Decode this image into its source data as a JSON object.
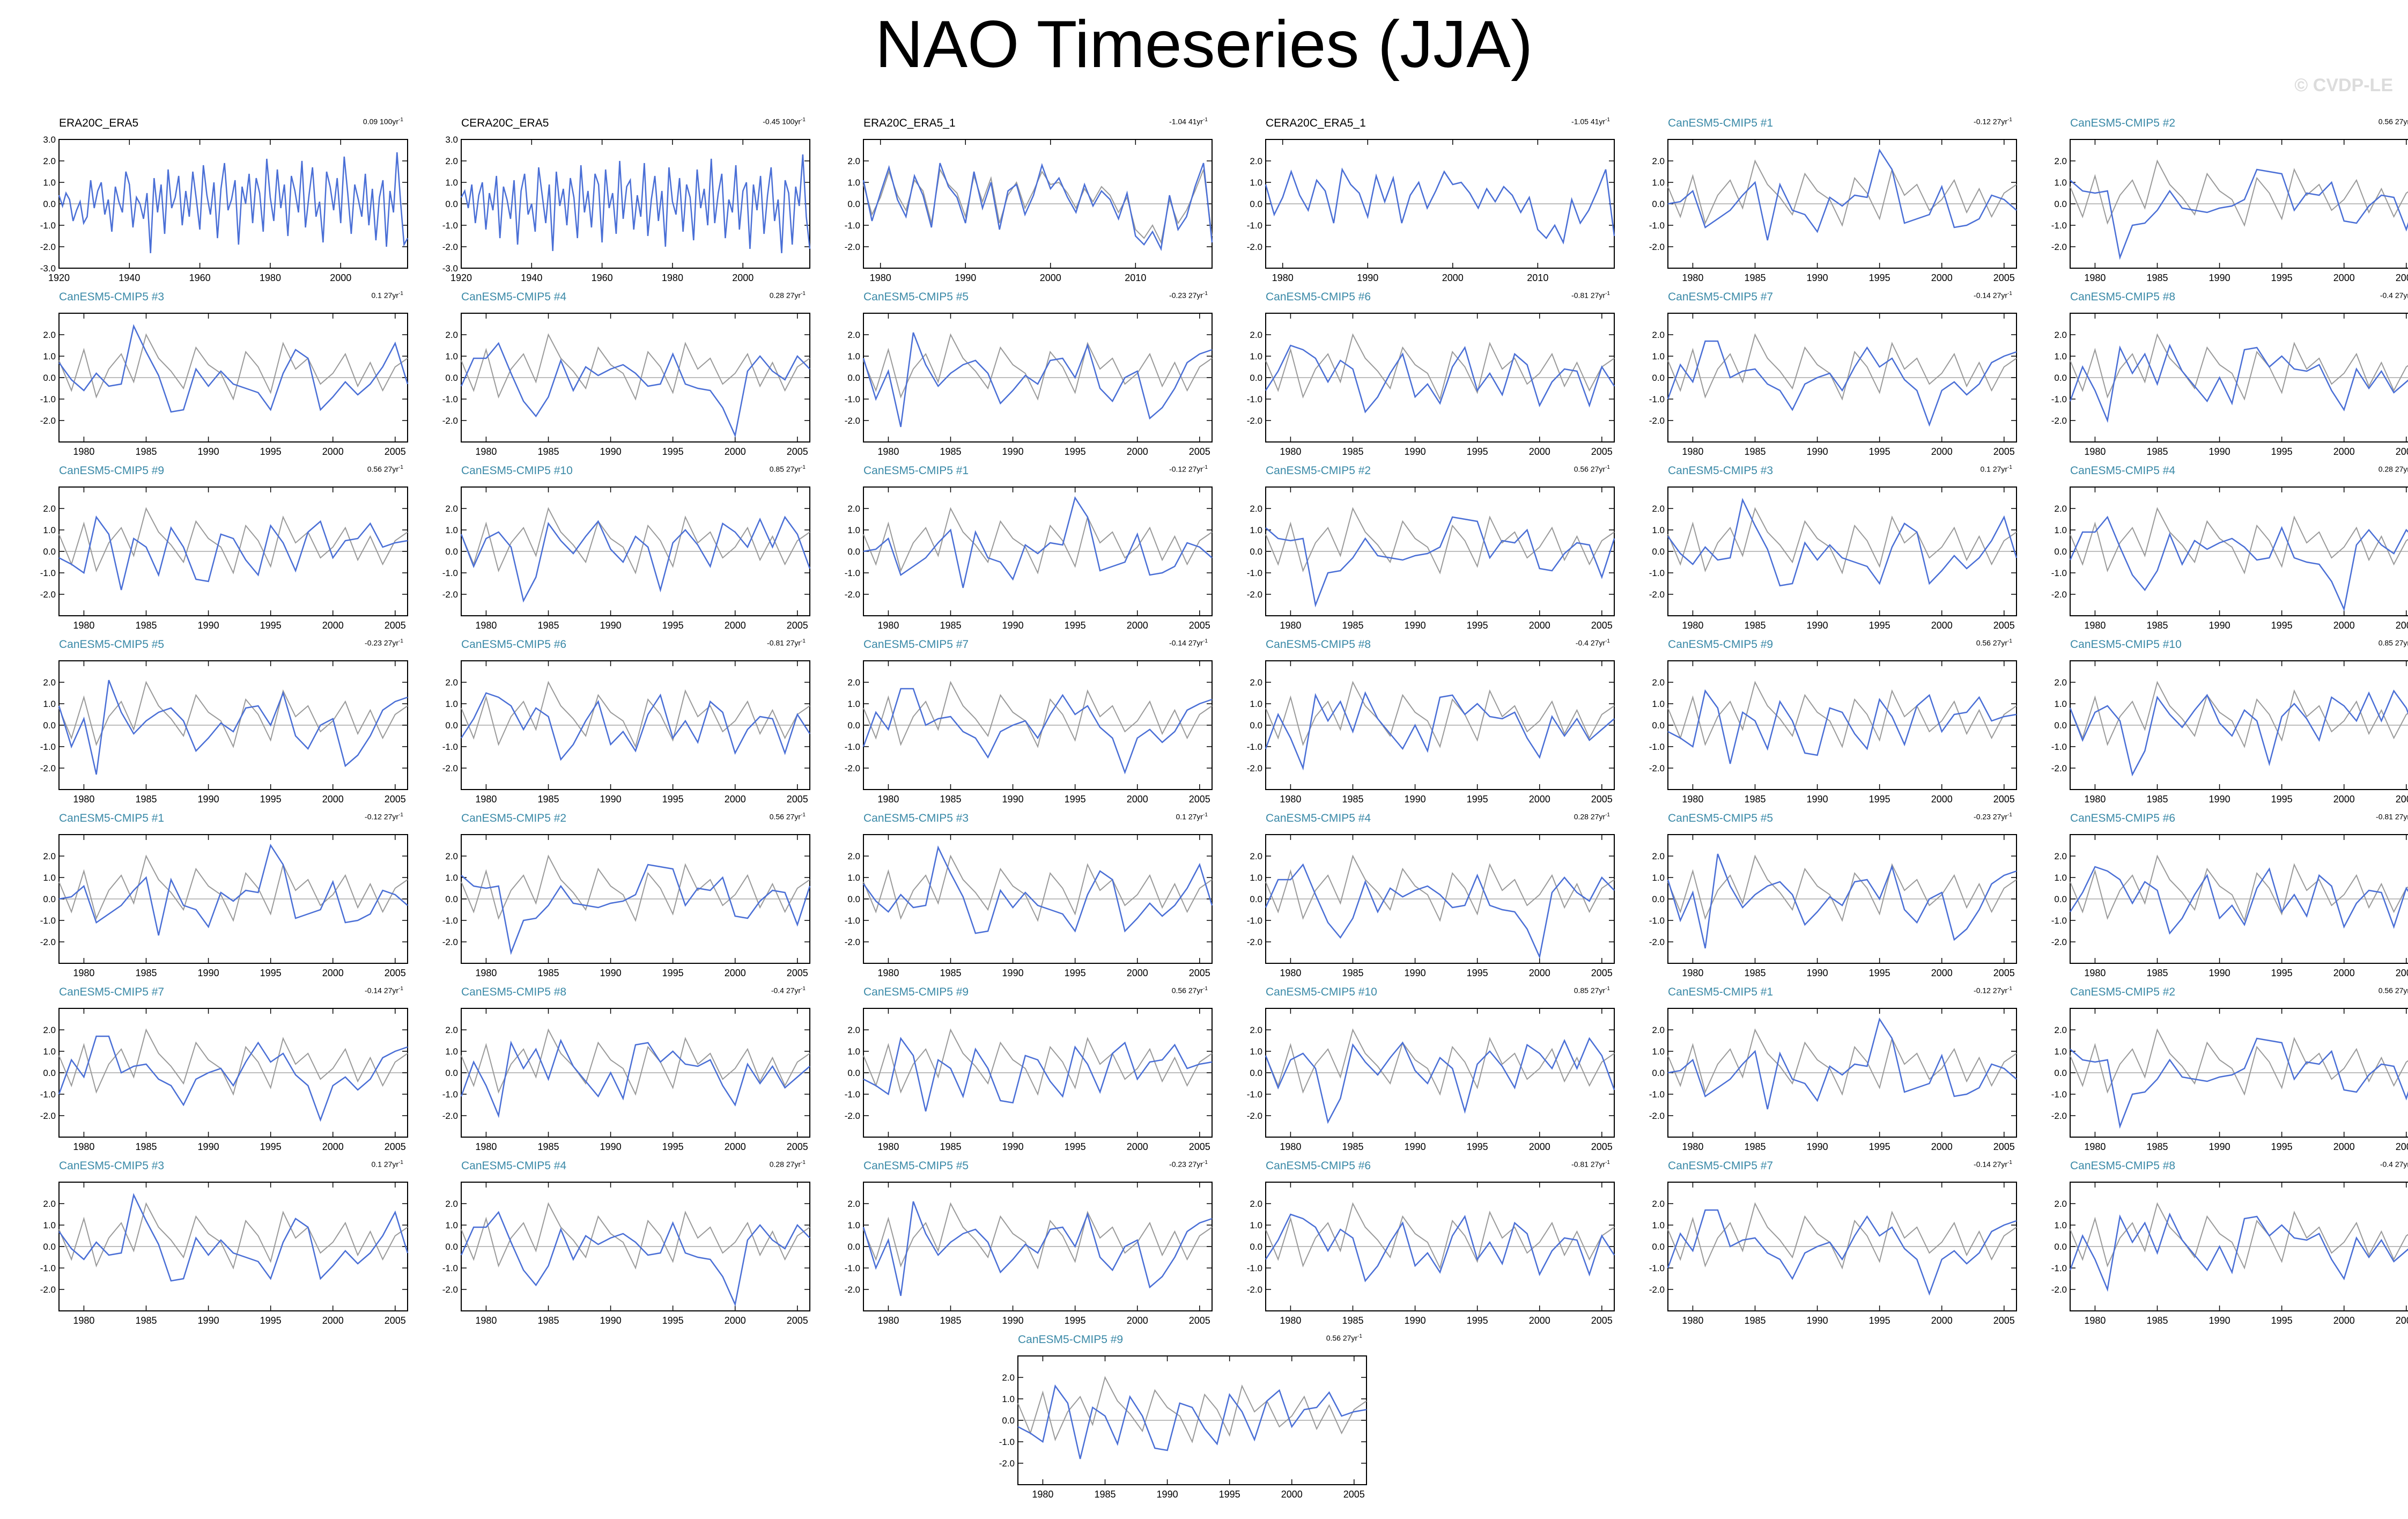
{
  "page": {
    "title": "NAO Timeseries (JJA)",
    "watermark": "© CVDP-LE"
  },
  "colors": {
    "model_line": "#4a6fd6",
    "obs_line": "#9a9a9a",
    "zero_line": "#bdbdbd",
    "model_title": "#3a89a7"
  },
  "chart_data": {
    "type": "line",
    "grid": false,
    "legend": "none",
    "obs_panels": [
      {
        "title": "ERA20C_ERA5",
        "trend": "0.09 100yr",
        "xlim": [
          1920,
          2019
        ],
        "xticks": [
          1920,
          1940,
          1960,
          1980,
          2000
        ],
        "ylim": [
          -3.0,
          3.0
        ],
        "yticks": [
          3.0,
          2.0,
          1.0,
          0.0,
          -1.0,
          -2.0,
          -3.0
        ]
      },
      {
        "title": "CERA20C_ERA5",
        "trend": "-0.45 100yr",
        "xlim": [
          1920,
          2019
        ],
        "xticks": [
          1920,
          1940,
          1960,
          1980,
          2000
        ],
        "ylim": [
          -3.0,
          3.0
        ],
        "yticks": [
          3.0,
          2.0,
          1.0,
          0.0,
          -1.0,
          -2.0,
          -3.0
        ]
      },
      {
        "title": "ERA20C_ERA5_1",
        "trend": "-1.04 41yr",
        "xlim": [
          1978,
          2019
        ],
        "xticks": [
          1980,
          1990,
          2000,
          2010
        ],
        "ylim": [
          -3.0,
          3.0
        ],
        "yticks": [
          2.0,
          1.0,
          0.0,
          -1.0,
          -2.0
        ]
      },
      {
        "title": "CERA20C_ERA5_1",
        "trend": "-1.05 41yr",
        "xlim": [
          1978,
          2019
        ],
        "xticks": [
          1980,
          1990,
          2000,
          2010
        ],
        "ylim": [
          -3.0,
          3.0
        ],
        "yticks": [
          2.0,
          1.0,
          0.0,
          -1.0,
          -2.0
        ]
      }
    ],
    "model_panels": [
      {
        "title": "CanESM5-CMIP5 #1",
        "trend": "-0.12 27yr"
      },
      {
        "title": "CanESM5-CMIP5 #2",
        "trend": "0.56 27yr"
      },
      {
        "title": "CanESM5-CMIP5 #3",
        "trend": "0.1 27yr"
      },
      {
        "title": "CanESM5-CMIP5 #4",
        "trend": "0.28 27yr"
      },
      {
        "title": "CanESM5-CMIP5 #5",
        "trend": "-0.23 27yr"
      },
      {
        "title": "CanESM5-CMIP5 #6",
        "trend": "-0.81 27yr"
      },
      {
        "title": "CanESM5-CMIP5 #7",
        "trend": "-0.14 27yr"
      },
      {
        "title": "CanESM5-CMIP5 #8",
        "trend": "-0.4 27yr"
      },
      {
        "title": "CanESM5-CMIP5 #9",
        "trend": "0.56 27yr"
      },
      {
        "title": "CanESM5-CMIP5 #10",
        "trend": "0.85 27yr"
      },
      {
        "title": "CanESM5-CMIP5 #1",
        "trend": "-0.12 27yr"
      },
      {
        "title": "CanESM5-CMIP5 #2",
        "trend": "0.56 27yr"
      },
      {
        "title": "CanESM5-CMIP5 #3",
        "trend": "0.1 27yr"
      },
      {
        "title": "CanESM5-CMIP5 #4",
        "trend": "0.28 27yr"
      },
      {
        "title": "CanESM5-CMIP5 #5",
        "trend": "-0.23 27yr"
      },
      {
        "title": "CanESM5-CMIP5 #6",
        "trend": "-0.81 27yr"
      },
      {
        "title": "CanESM5-CMIP5 #7",
        "trend": "-0.14 27yr"
      },
      {
        "title": "CanESM5-CMIP5 #8",
        "trend": "-0.4 27yr"
      },
      {
        "title": "CanESM5-CMIP5 #9",
        "trend": "0.56 27yr"
      },
      {
        "title": "CanESM5-CMIP5 #10",
        "trend": "0.85 27yr"
      },
      {
        "title": "CanESM5-CMIP5 #1",
        "trend": "-0.12 27yr"
      },
      {
        "title": "CanESM5-CMIP5 #2",
        "trend": "0.56 27yr"
      },
      {
        "title": "CanESM5-CMIP5 #3",
        "trend": "0.1 27yr"
      },
      {
        "title": "CanESM5-CMIP5 #4",
        "trend": "0.28 27yr"
      },
      {
        "title": "CanESM5-CMIP5 #5",
        "trend": "-0.23 27yr"
      },
      {
        "title": "CanESM5-CMIP5 #6",
        "trend": "-0.81 27yr"
      },
      {
        "title": "CanESM5-CMIP5 #7",
        "trend": "-0.14 27yr"
      },
      {
        "title": "CanESM5-CMIP5 #8",
        "trend": "-0.4 27yr"
      },
      {
        "title": "CanESM5-CMIP5 #9",
        "trend": "0.56 27yr"
      },
      {
        "title": "CanESM5-CMIP5 #10",
        "trend": "0.85 27yr"
      },
      {
        "title": "CanESM5-CMIP5 #1",
        "trend": "-0.12 27yr"
      },
      {
        "title": "CanESM5-CMIP5 #2",
        "trend": "0.56 27yr"
      },
      {
        "title": "CanESM5-CMIP5 #3",
        "trend": "0.1 27yr"
      },
      {
        "title": "CanESM5-CMIP5 #4",
        "trend": "0.28 27yr"
      },
      {
        "title": "CanESM5-CMIP5 #5",
        "trend": "-0.23 27yr"
      },
      {
        "title": "CanESM5-CMIP5 #6",
        "trend": "-0.81 27yr"
      },
      {
        "title": "CanESM5-CMIP5 #7",
        "trend": "-0.14 27yr"
      },
      {
        "title": "CanESM5-CMIP5 #8",
        "trend": "-0.4 27yr"
      },
      {
        "title": "CanESM5-CMIP5 #9",
        "trend": "0.56 27yr"
      }
    ],
    "model_axes": {
      "xlim": [
        1978,
        2006
      ],
      "xticks": [
        1980,
        1985,
        1990,
        1995,
        2000,
        2005
      ],
      "ylim": [
        -3.0,
        3.0
      ],
      "yticks": [
        2.0,
        1.0,
        0.0,
        -1.0,
        -2.0
      ]
    },
    "series": {
      "obs_long": [
        0.4,
        -0.1,
        0.5,
        0.2,
        -0.8,
        -0.3,
        0.1,
        -0.9,
        -0.6,
        1.1,
        -0.2,
        0.6,
        1.0,
        -0.5,
        0.2,
        -1.3,
        0.8,
        0.1,
        -0.4,
        1.5,
        0.9,
        -1.1,
        0.3,
        0.0,
        -0.7,
        0.5,
        -2.3,
        1.2,
        -0.4,
        0.9,
        -1.4,
        1.6,
        -0.2,
        0.3,
        1.3,
        -1.0,
        0.6,
        -0.6,
        1.5,
        0.2,
        -1.2,
        1.8,
        0.4,
        -0.5,
        1.0,
        -1.6,
        0.7,
        1.9,
        -0.3,
        0.2,
        1.1,
        -1.9,
        0.8,
        0.0,
        1.4,
        -0.9,
        1.2,
        0.5,
        -1.3,
        2.1,
        0.3,
        -0.8,
        1.6,
        -0.2,
        0.9,
        -1.5,
        1.3,
        0.6,
        -0.4,
        2.0,
        -1.1,
        0.4,
        1.7,
        -0.6,
        0.1,
        -1.8,
        1.5,
        0.8,
        -0.3,
        1.2,
        -0.9,
        2.2,
        0.5,
        -1.4,
        0.9,
        0.2,
        -0.6,
        1.4,
        -1.0,
        0.7,
        -1.7,
        0.3,
        1.1,
        -2.0,
        0.6,
        -0.4,
        2.4,
        0.1,
        -1.9,
        -1.6
      ],
      "obs_long_b": [
        0.3,
        0.6,
        -0.2,
        0.9,
        -0.9,
        0.4,
        1.0,
        -1.2,
        0.5,
        -0.3,
        1.3,
        -1.6,
        0.8,
        0.2,
        -0.7,
        1.1,
        -1.9,
        0.6,
        1.4,
        -0.5,
        0.0,
        -1.3,
        1.7,
        0.4,
        -0.9,
        0.9,
        -2.2,
        1.5,
        -0.1,
        0.7,
        -1.0,
        1.2,
        0.3,
        -1.6,
        1.8,
        -0.4,
        0.6,
        -1.1,
        1.4,
        0.9,
        -1.8,
        1.6,
        -0.2,
        0.5,
        -1.4,
        2.0,
        -0.7,
        0.8,
        1.1,
        -1.2,
        0.4,
        -0.6,
        1.9,
        -1.5,
        0.2,
        1.3,
        -0.8,
        0.6,
        -2.0,
        1.7,
        0.1,
        -0.5,
        1.2,
        -1.3,
        0.9,
        0.3,
        -1.7,
        1.6,
        -0.2,
        0.7,
        -1.0,
        2.1,
        -0.9,
        0.5,
        1.4,
        -1.6,
        0.2,
        -0.4,
        1.8,
        -1.2,
        0.6,
        1.0,
        -2.1,
        0.9,
        -0.3,
        1.3,
        -1.4,
        0.4,
        1.7,
        -0.8,
        0.2,
        -2.3,
        1.1,
        0.5,
        -1.9,
        0.8,
        -0.1,
        2.3,
        -0.6,
        -2.1
      ],
      "obs_short": [
        1.1,
        -0.8,
        0.5,
        1.7,
        0.2,
        -0.6,
        1.3,
        0.4,
        -1.1,
        1.9,
        0.8,
        0.3,
        -0.9,
        1.5,
        -0.2,
        1.0,
        -1.2,
        0.6,
        0.9,
        -0.5,
        0.4,
        1.8,
        0.7,
        1.2,
        0.3,
        -0.4,
        0.9,
        -0.1,
        0.6,
        0.2,
        -0.7,
        0.5,
        -1.5,
        -1.9,
        -1.3,
        -2.1,
        0.4,
        -1.2,
        -0.6,
        0.8,
        1.9,
        -1.8
      ],
      "obs_short_b": [
        0.9,
        -0.5,
        0.3,
        1.5,
        0.4,
        -0.3,
        1.1,
        0.6,
        -0.9,
        1.6,
        0.9,
        0.5,
        -0.6,
        1.3,
        0.1,
        1.2,
        -0.9,
        0.4,
        1.0,
        -0.2,
        0.6,
        1.5,
        0.9,
        1.0,
        0.5,
        -0.2,
        0.7,
        0.1,
        0.8,
        0.4,
        -0.4,
        0.3,
        -1.2,
        -1.6,
        -1.0,
        -1.8,
        0.2,
        -0.9,
        -0.3,
        0.6,
        1.6,
        -1.5
      ],
      "ref_model": [
        0.8,
        -0.6,
        1.3,
        -0.9,
        0.4,
        1.1,
        -0.2,
        2.0,
        0.9,
        0.3,
        -0.5,
        1.4,
        0.6,
        0.2,
        -1.0,
        1.2,
        0.5,
        -0.7,
        1.6,
        0.4,
        0.9,
        -0.3,
        0.2,
        1.1,
        -0.4,
        0.7,
        -0.6,
        0.5,
        0.9
      ],
      "models": [
        [
          0.0,
          0.1,
          0.6,
          -1.1,
          -0.7,
          -0.3,
          0.4,
          1.0,
          -1.7,
          0.9,
          -0.3,
          -0.5,
          -1.3,
          0.3,
          -0.1,
          0.4,
          0.3,
          2.5,
          1.6,
          -0.9,
          -0.7,
          -0.5,
          0.8,
          -1.1,
          -1.0,
          -0.7,
          0.4,
          0.2,
          -0.3
        ],
        [
          1.1,
          0.6,
          0.5,
          0.6,
          -2.5,
          -1.0,
          -0.9,
          -0.3,
          0.6,
          -0.2,
          -0.3,
          -0.4,
          -0.2,
          -0.1,
          0.2,
          1.6,
          1.5,
          1.4,
          -0.3,
          0.5,
          0.4,
          1.0,
          -0.8,
          -0.9,
          -0.1,
          0.4,
          0.3,
          -1.2,
          0.6
        ],
        [
          0.7,
          -0.1,
          -0.6,
          0.2,
          -0.4,
          -0.3,
          2.4,
          1.2,
          0.1,
          -1.6,
          -1.5,
          0.4,
          -0.4,
          0.3,
          -0.3,
          -0.5,
          -0.7,
          -1.5,
          0.2,
          1.3,
          0.9,
          -1.5,
          -0.9,
          -0.2,
          -0.8,
          -0.3,
          0.5,
          1.6,
          -0.3
        ],
        [
          -0.4,
          0.9,
          0.9,
          1.6,
          0.2,
          -1.1,
          -1.8,
          -0.9,
          0.8,
          -0.6,
          0.5,
          0.1,
          0.4,
          0.6,
          0.2,
          -0.4,
          -0.3,
          1.1,
          -0.3,
          -0.5,
          -0.6,
          -1.4,
          -2.7,
          0.3,
          1.0,
          0.3,
          -0.1,
          1.0,
          0.4
        ],
        [
          0.9,
          -1.0,
          0.3,
          -2.3,
          2.1,
          0.6,
          -0.4,
          0.2,
          0.6,
          0.8,
          0.2,
          -1.2,
          -0.6,
          0.1,
          -0.3,
          0.8,
          0.9,
          0.0,
          1.5,
          -0.5,
          -1.1,
          0.0,
          0.3,
          -1.9,
          -1.4,
          -0.5,
          0.7,
          1.1,
          1.3
        ],
        [
          -0.6,
          0.3,
          1.5,
          1.3,
          0.9,
          -0.2,
          0.8,
          0.4,
          -1.6,
          -0.9,
          0.2,
          1.1,
          -0.9,
          -0.3,
          -1.2,
          0.5,
          1.4,
          -0.6,
          0.2,
          -0.8,
          1.1,
          0.6,
          -1.3,
          -0.2,
          0.4,
          0.3,
          -1.3,
          0.5,
          -0.4
        ],
        [
          -1.0,
          0.6,
          -0.2,
          1.7,
          1.7,
          0.0,
          0.3,
          0.4,
          -0.3,
          -0.6,
          -1.5,
          -0.3,
          0.0,
          0.2,
          -0.6,
          0.5,
          1.4,
          0.5,
          0.9,
          -0.1,
          -0.6,
          -2.2,
          -0.6,
          -0.2,
          -0.8,
          -0.3,
          0.7,
          1.0,
          1.2
        ],
        [
          -1.1,
          0.5,
          -0.6,
          -2.0,
          1.4,
          0.2,
          1.1,
          -0.3,
          1.5,
          0.3,
          -0.4,
          -1.1,
          0.0,
          -1.2,
          1.3,
          1.4,
          0.5,
          1.0,
          0.4,
          0.3,
          0.6,
          -0.6,
          -1.5,
          0.4,
          -0.5,
          0.3,
          -0.7,
          -0.2,
          0.3
        ],
        [
          -0.3,
          -0.6,
          -1.0,
          1.6,
          0.8,
          -1.8,
          0.6,
          0.2,
          -1.1,
          1.1,
          0.2,
          -1.3,
          -1.4,
          0.8,
          0.6,
          -0.4,
          -1.1,
          1.2,
          0.4,
          -0.9,
          0.9,
          1.4,
          -0.3,
          0.5,
          0.6,
          1.3,
          0.2,
          0.4,
          0.5
        ],
        [
          0.8,
          -0.7,
          0.6,
          0.9,
          0.2,
          -2.3,
          -1.2,
          1.3,
          0.5,
          -0.1,
          0.7,
          1.4,
          0.1,
          -0.5,
          0.7,
          0.2,
          -1.8,
          0.4,
          1.0,
          0.3,
          -0.7,
          1.3,
          0.9,
          0.2,
          1.5,
          0.2,
          1.6,
          0.8,
          -0.8
        ]
      ]
    }
  }
}
